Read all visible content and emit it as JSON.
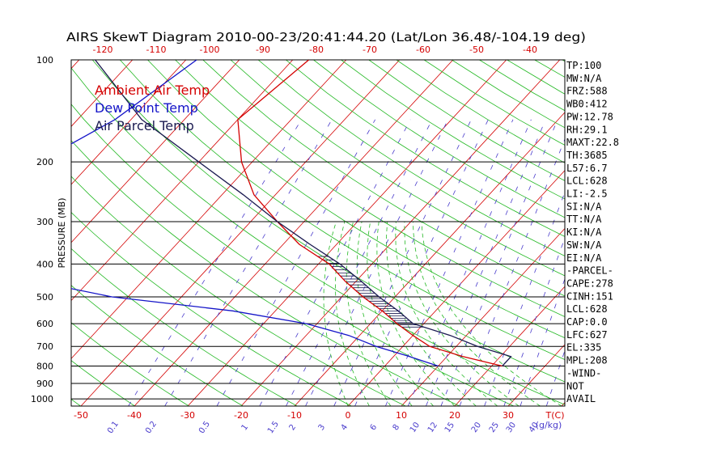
{
  "chart_data": {
    "type": "line",
    "title": "AIRS SkewT Diagram 2010-00-23/20:41:44.20 (Lat/Lon 36.48/-104.19 deg)",
    "ylabel": "PRESSURE (MB)",
    "xlabel_right": "T(C)",
    "mixing_unit": "(g/kg)",
    "legend": [
      "Ambient Air Temp",
      "Dew Point Temp",
      "Air Parcel Temp"
    ],
    "colors": {
      "ambient": "#d40000",
      "dewpoint": "#1414c8",
      "parcel": "#1a1a50",
      "isotherm": "#d40000",
      "adiabat": "#22b822",
      "mixing": "#4a3ccc",
      "grid": "#000000"
    },
    "pressure_levels": [
      100,
      200,
      300,
      400,
      500,
      600,
      700,
      800,
      900,
      1000
    ],
    "bottom_temp_ticks": [
      -50,
      -40,
      -30,
      -20,
      -10,
      0,
      10,
      20,
      30
    ],
    "top_temp_ticks": [
      -120,
      -110,
      -100,
      -90,
      -80,
      -70,
      -60,
      -50,
      -40
    ],
    "mixing_ratio_labels": [
      "0.1",
      "0.2",
      "0.5",
      "1",
      "1.5",
      "2",
      "3",
      "4",
      "6",
      "8",
      "10",
      "12",
      "15",
      "20",
      "25",
      "30",
      "40"
    ],
    "mixing_ratio_values": [
      0.1,
      0.2,
      0.5,
      1,
      1.5,
      2,
      3,
      4,
      6,
      8,
      10,
      12,
      15,
      20,
      25,
      30,
      40
    ],
    "series": [
      {
        "name": "Ambient Air Temp",
        "points": [
          [
            100,
            -67
          ],
          [
            150,
            -70
          ],
          [
            200,
            -62
          ],
          [
            250,
            -54
          ],
          [
            300,
            -45
          ],
          [
            350,
            -37
          ],
          [
            400,
            -28
          ],
          [
            450,
            -22
          ],
          [
            500,
            -16
          ],
          [
            550,
            -10
          ],
          [
            600,
            -5
          ],
          [
            650,
            0
          ],
          [
            700,
            5
          ],
          [
            750,
            13
          ],
          [
            800,
            22
          ]
        ]
      },
      {
        "name": "Dew Point Temp",
        "points": [
          [
            100,
            -88
          ],
          [
            150,
            -93
          ],
          [
            200,
            -100
          ],
          [
            250,
            -100
          ],
          [
            300,
            -100
          ],
          [
            350,
            -102
          ],
          [
            400,
            -104
          ],
          [
            450,
            -80
          ],
          [
            500,
            -63
          ],
          [
            550,
            -38
          ],
          [
            600,
            -22
          ],
          [
            650,
            -12
          ],
          [
            700,
            -5
          ],
          [
            750,
            3
          ],
          [
            800,
            10
          ]
        ]
      },
      {
        "name": "Air Parcel Temp",
        "points": [
          [
            100,
            -107
          ],
          [
            150,
            -88
          ],
          [
            200,
            -70
          ],
          [
            250,
            -56
          ],
          [
            300,
            -45
          ],
          [
            350,
            -35
          ],
          [
            400,
            -26
          ],
          [
            450,
            -19
          ],
          [
            500,
            -13
          ],
          [
            550,
            -7
          ],
          [
            600,
            -2
          ],
          [
            650,
            7
          ],
          [
            700,
            14
          ],
          [
            750,
            22
          ],
          [
            800,
            22
          ]
        ]
      }
    ],
    "indices": [
      "TP:100",
      "MW:N/A",
      "FRZ:588",
      "WB0:412",
      "PW:12.78",
      "RH:29.1",
      "MAXT:22.8",
      "TH:3685",
      "L57:6.7",
      "LCL:628",
      "LI:-2.5",
      "SI:N/A",
      "TT:N/A",
      "KI:N/A",
      "SW:N/A",
      "EI:N/A",
      "-PARCEL-",
      "CAPE:278",
      "CINH:151",
      "LCL:628",
      "CAP:0.0",
      "LFC:627",
      "EL:335",
      "MPL:208",
      "-WIND-",
      "NOT",
      "AVAIL"
    ]
  }
}
